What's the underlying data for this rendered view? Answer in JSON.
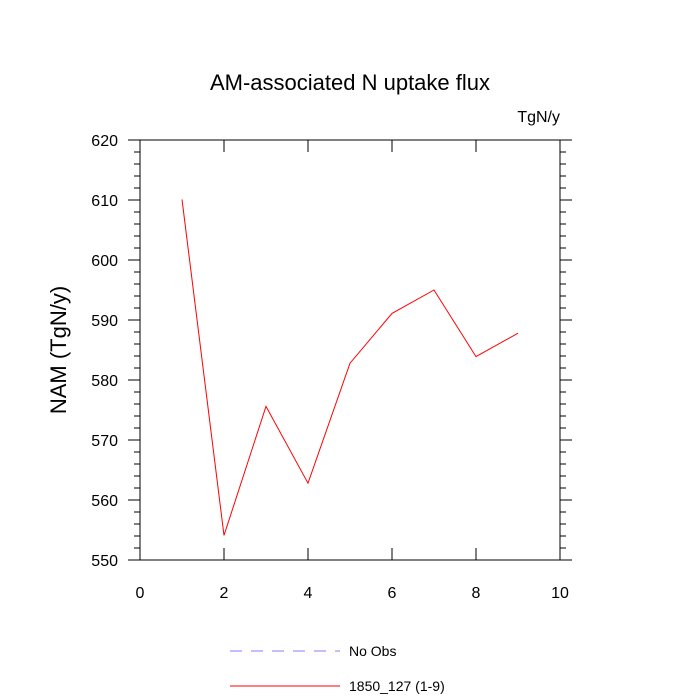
{
  "chart_data": {
    "type": "line",
    "title": "AM-associated N uptake flux",
    "units": "TgN/y",
    "ylabel": "NAM  (TgN/y)",
    "xlabel": "",
    "xlim": [
      0,
      10
    ],
    "ylim": [
      550,
      620
    ],
    "x_major_ticks": [
      0,
      2,
      4,
      6,
      8,
      10
    ],
    "x_tick_labels": [
      "0",
      "2",
      "4",
      "6",
      "8",
      "10"
    ],
    "y_major_ticks": [
      550,
      560,
      570,
      580,
      590,
      600,
      610,
      620
    ],
    "y_tick_labels": [
      "550",
      "560",
      "570",
      "580",
      "590",
      "600",
      "610",
      "620"
    ],
    "series": [
      {
        "name": "1850_127 (1-9)",
        "color": "#ff0000",
        "dash": "solid",
        "x": [
          1,
          2,
          3,
          4,
          5,
          6,
          7,
          8,
          9
        ],
        "y": [
          610.1,
          554.1,
          575.6,
          562.8,
          582.8,
          591.1,
          595.0,
          583.9,
          587.8
        ]
      }
    ],
    "legend": {
      "placement": "bottom-center",
      "entries": [
        {
          "label": "No Obs",
          "color": "#8080ff",
          "dash": "dashed"
        },
        {
          "label": "1850_127 (1-9)",
          "color": "#ff0000",
          "dash": "solid"
        }
      ]
    },
    "grid": false
  }
}
